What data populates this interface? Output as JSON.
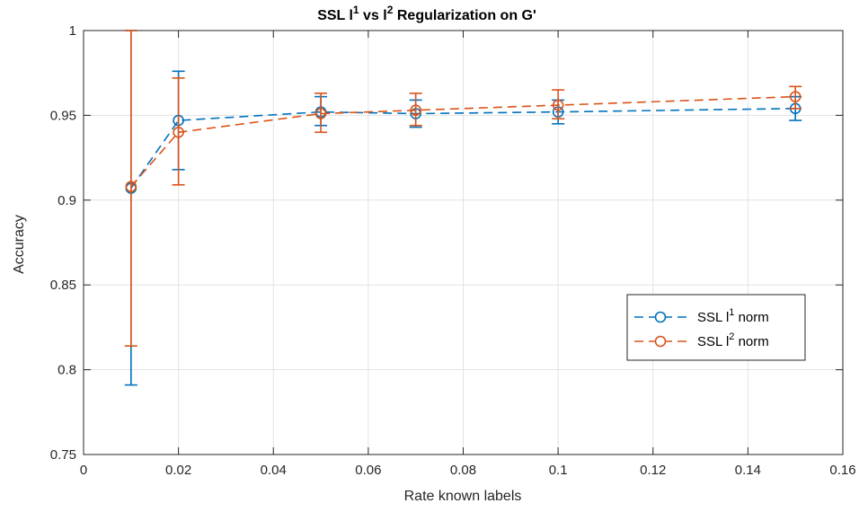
{
  "chart_data": {
    "type": "line",
    "title": {
      "prefix": "SSL l",
      "sup1": "1",
      "middle": " vs l",
      "sup2": "2",
      "suffix": " Regularization on G'"
    },
    "xlabel": "Rate known labels",
    "ylabel": "Accuracy",
    "xlim": [
      0,
      0.16
    ],
    "ylim": [
      0.75,
      1
    ],
    "xticks": [
      0,
      0.02,
      0.04,
      0.06,
      0.08,
      0.1,
      0.12,
      0.14,
      0.16
    ],
    "xtick_labels": [
      "0",
      "0.02",
      "0.04",
      "0.06",
      "0.08",
      "0.1",
      "0.12",
      "0.14",
      "0.16"
    ],
    "yticks": [
      0.75,
      0.8,
      0.85,
      0.9,
      0.95,
      1
    ],
    "ytick_labels": [
      "0.75",
      "0.8",
      "0.85",
      "0.9",
      "0.95",
      "1"
    ],
    "grid": true,
    "legend_position": "right",
    "x": [
      0.01,
      0.02,
      0.05,
      0.07,
      0.1,
      0.15
    ],
    "series": [
      {
        "name": "SSL l1 norm",
        "legend_base": "SSL l",
        "legend_sup": "1",
        "legend_suffix": " norm",
        "color": "#0072BD",
        "values": [
          0.907,
          0.947,
          0.952,
          0.951,
          0.952,
          0.954
        ],
        "err_low": [
          0.791,
          0.918,
          0.944,
          0.943,
          0.945,
          0.947
        ],
        "err_high": [
          1.0,
          0.976,
          0.961,
          0.959,
          0.959,
          0.961
        ]
      },
      {
        "name": "SSL l2 norm",
        "legend_base": "SSL l",
        "legend_sup": "2",
        "legend_suffix": " norm",
        "color": "#D95319",
        "values": [
          0.908,
          0.94,
          0.951,
          0.953,
          0.956,
          0.961
        ],
        "err_low": [
          0.814,
          0.909,
          0.94,
          0.944,
          0.948,
          0.954
        ],
        "err_high": [
          1.0,
          0.972,
          0.963,
          0.963,
          0.965,
          0.967
        ]
      }
    ]
  }
}
